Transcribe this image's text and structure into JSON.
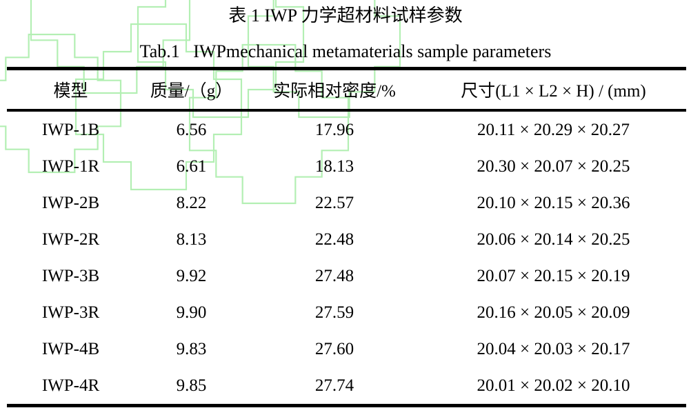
{
  "page": {
    "background": "#ffffff",
    "watermark_color": "#b3efb3",
    "rule_color": "#000000"
  },
  "titles": {
    "zh": "表 1 IWP 力学超材料试样参数",
    "en": "Tab.1   IWPmechanical metamaterials sample parameters"
  },
  "table": {
    "headers": [
      "模型",
      "质量/（g）",
      "实际相对密度/%",
      "尺寸(L1 × L2 × H) / (mm)"
    ],
    "rows": [
      [
        "IWP-1B",
        "6.56",
        "17.96",
        "20.11 × 20.29 × 20.27"
      ],
      [
        "IWP-1R",
        "6.61",
        "18.13",
        "20.30 × 20.07 × 20.25"
      ],
      [
        "IWP-2B",
        "8.22",
        "22.57",
        "20.10 × 20.15 × 20.36"
      ],
      [
        "IWP-2R",
        "8.13",
        "22.48",
        "20.06 × 20.14 × 20.25"
      ],
      [
        "IWP-3B",
        "9.92",
        "27.48",
        "20.07 × 20.15 × 20.19"
      ],
      [
        "IWP-3R",
        "9.90",
        "27.59",
        "20.16 × 20.05 × 20.09"
      ],
      [
        "IWP-4B",
        "9.83",
        "27.60",
        "20.04 × 20.03 × 20.17"
      ],
      [
        "IWP-4R",
        "9.85",
        "27.74",
        "20.01 × 20.02 × 20.10"
      ]
    ]
  }
}
